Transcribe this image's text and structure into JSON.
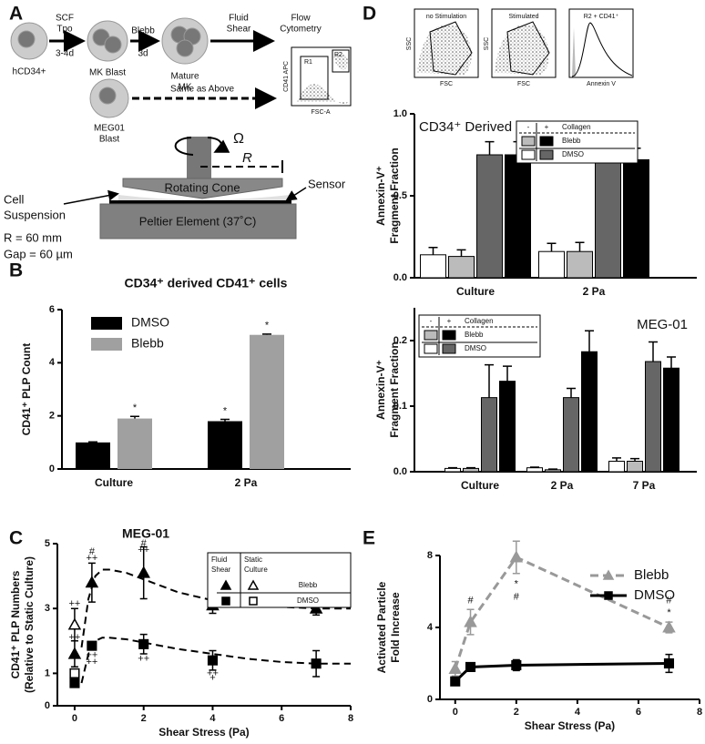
{
  "panels": [
    "A",
    "B",
    "C",
    "D",
    "E"
  ],
  "diagram": {
    "cells": [
      [
        "hCD34+"
      ],
      [
        "MK Blast"
      ],
      [
        "Mature",
        "MK"
      ],
      [
        "MEG01",
        "Blast"
      ]
    ],
    "arrows": [
      {
        "above": [
          "SCF",
          "Tpo"
        ],
        "below": [
          "3-4d"
        ]
      },
      {
        "above": [
          "Blebb"
        ],
        "below": [
          "3d"
        ]
      },
      {
        "above": [
          "Fluid",
          "Shear"
        ]
      },
      {
        "above": [
          "Same as Above"
        ]
      }
    ],
    "flow": [
      "Flow",
      "Cytometry"
    ],
    "inset": {
      "gates": [
        "R1",
        "R2"
      ],
      "xlabel": "FSC-A",
      "ylabel": "CD41 APC"
    },
    "device": {
      "omega": "Ω",
      "radius": "R",
      "cone": "Rotating Cone",
      "plate": "Peltier Element (37˚C)",
      "suspension": [
        "Cell",
        "Suspension"
      ],
      "sensor": "Sensor",
      "params": [
        "R = 60 mm",
        "Gap = 60 µm"
      ]
    }
  },
  "cytometry": [
    {
      "title": "no Stimulation",
      "xlabel": "FSC",
      "ylabel": "SSC"
    },
    {
      "title": "Stimulated",
      "xlabel": "FSC",
      "ylabel": "SSC"
    },
    {
      "title": "R2 + CD41⁺",
      "xlabel": "Annexin V"
    }
  ],
  "chart_data": [
    {
      "type": "bar",
      "title": "CD34⁺ derived CD41⁺ cells",
      "ylabel": [
        "CD41⁺ PLP Count"
      ],
      "categories": [
        "Culture",
        "2 Pa"
      ],
      "series": [
        {
          "name": "DMSO",
          "color": "#000000",
          "values": [
            1,
            1.8
          ],
          "errors": [
            0.02,
            0.07
          ],
          "annotations": [
            null,
            "*"
          ]
        },
        {
          "name": "Blebb",
          "color": "#a0a0a0",
          "values": [
            1.9,
            5.05
          ],
          "errors": [
            0.08,
            0.03
          ],
          "annotations": [
            "*",
            "*"
          ]
        }
      ],
      "ylim": [
        0,
        6
      ],
      "yticks": [
        0,
        2,
        4,
        6
      ],
      "legend": "upper left"
    },
    {
      "type": "line",
      "title": "MEG-01",
      "ylabel": [
        "CD41⁺ PLP Numbers",
        "(Relative to Static Culture)"
      ],
      "xlabel": "Shear Stress (Pa)",
      "series": [
        {
          "name": "Blebb",
          "marker": "triangle",
          "filled": true,
          "color": "#000000",
          "x": [
            0,
            0.5,
            2,
            4,
            7
          ],
          "values": [
            1.6,
            3.8,
            4.1,
            3.1,
            3.0
          ],
          "errors": [
            0.4,
            0.6,
            0.8,
            0.25,
            0.2
          ]
        },
        {
          "name": "Blebb",
          "marker": "triangle",
          "filled": false,
          "color": "#000000",
          "x": [
            0
          ],
          "values": [
            2.5
          ],
          "errors": [
            0.5
          ]
        },
        {
          "name": "DMSO",
          "marker": "square",
          "filled": true,
          "color": "#000000",
          "x": [
            0,
            0.5,
            2,
            4,
            7
          ],
          "values": [
            0.7,
            1.85,
            1.9,
            1.4,
            1.3
          ],
          "errors": [
            0.05,
            0.1,
            0.3,
            0.3,
            0.4
          ]
        },
        {
          "name": "DMSO",
          "marker": "square",
          "filled": false,
          "color": "#000000",
          "x": [
            0
          ],
          "values": [
            1.0
          ]
        }
      ],
      "fits": [
        {
          "x": [
            0.2,
            0.4,
            0.6,
            0.8,
            1,
            1.5,
            2,
            3,
            4,
            5,
            6,
            7,
            8
          ],
          "values": [
            1.8,
            3.3,
            4.0,
            4.2,
            4.2,
            4.1,
            3.9,
            3.5,
            3.25,
            3.1,
            3.05,
            3.0,
            3.0
          ]
        },
        {
          "x": [
            0.2,
            0.4,
            0.6,
            0.8,
            1,
            1.5,
            2,
            3,
            4,
            5,
            6,
            7,
            8
          ],
          "values": [
            0.7,
            1.6,
            2.0,
            2.1,
            2.1,
            2.05,
            1.95,
            1.75,
            1.6,
            1.45,
            1.35,
            1.3,
            1.3
          ]
        }
      ],
      "annotations": [
        {
          "text": "#",
          "x": 0.5,
          "y": 4.75
        },
        {
          "text": "++",
          "x": 0.5,
          "y": 4.55
        },
        {
          "text": "#",
          "x": 2,
          "y": 5.0
        },
        {
          "text": "++",
          "x": 2,
          "y": 4.8
        },
        {
          "text": "#",
          "x": 4,
          "y": 3.65
        },
        {
          "text": "++",
          "x": 4,
          "y": 3.45
        },
        {
          "text": "++",
          "x": 7,
          "y": 3.35
        },
        {
          "text": "++",
          "x": 0,
          "y": 3.15
        },
        {
          "text": "++",
          "x": 0,
          "y": 2.1
        },
        {
          "text": "++",
          "x": 0.5,
          "y": 1.55
        },
        {
          "text": "++",
          "x": 0.5,
          "y": 1.35
        },
        {
          "text": "++",
          "x": 2,
          "y": 1.45
        },
        {
          "text": "++",
          "x": 4,
          "y": 1.0
        },
        {
          "text": "+",
          "x": 4,
          "y": 0.85
        }
      ],
      "xlim": [
        -0.5,
        8
      ],
      "xticks": [
        0,
        2,
        4,
        6,
        8
      ],
      "ylim": [
        0,
        5
      ],
      "yticks": [
        0,
        1,
        3,
        5
      ],
      "legend": "upper right",
      "legend_headers": [
        [
          "Fluid",
          "Shear"
        ],
        [
          "Static",
          "Culture"
        ]
      ]
    },
    {
      "type": "bar",
      "title": "CD34⁺ Derived",
      "ylabel": [
        "Annexin-V⁺",
        "Fragment Fraction"
      ],
      "categories": [
        "Culture",
        "2 Pa"
      ],
      "series": [
        {
          "name": "DMSO",
          "collagen": "-",
          "color": "#ffffff",
          "values": [
            0.14,
            0.16
          ],
          "errors": [
            0.045,
            0.05
          ]
        },
        {
          "name": "Blebb",
          "collagen": "-",
          "color": "#bbbbbb",
          "values": [
            0.13,
            0.16
          ],
          "errors": [
            0.04,
            0.055
          ]
        },
        {
          "name": "DMSO",
          "collagen": "+",
          "color": "#666666",
          "values": [
            0.75,
            0.7
          ],
          "errors": [
            0.08,
            0.1
          ]
        },
        {
          "name": "Blebb",
          "collagen": "+",
          "color": "#000000",
          "values": [
            0.75,
            0.72
          ],
          "errors": [
            0.08,
            0.07
          ]
        }
      ],
      "ylim": [
        0,
        1
      ],
      "yticks": [
        {
          "value": 0,
          "label": "0.0"
        },
        {
          "value": 0.5,
          "label": "0.5"
        },
        {
          "value": 1,
          "label": "1.0"
        }
      ],
      "legend": "upper right",
      "legend_title": "Collagen"
    },
    {
      "type": "bar",
      "title": "MEG-01",
      "ylabel": [
        "Annexin-V⁺",
        "Fragment Fraction"
      ],
      "categories": [
        "Culture",
        "2 Pa",
        "7 Pa"
      ],
      "series": [
        {
          "name": "DMSO",
          "collagen": "-",
          "color": "#ffffff",
          "values": [
            0.005,
            0.006,
            0.016
          ],
          "errors": [
            0.001,
            0.001,
            0.005
          ]
        },
        {
          "name": "Blebb",
          "collagen": "-",
          "color": "#bbbbbb",
          "values": [
            0.005,
            0.003,
            0.016
          ],
          "errors": [
            0.001,
            0.001,
            0.004
          ]
        },
        {
          "name": "DMSO",
          "collagen": "+",
          "color": "#666666",
          "values": [
            0.113,
            0.113,
            0.168
          ],
          "errors": [
            0.05,
            0.014,
            0.03
          ]
        },
        {
          "name": "Blebb",
          "collagen": "+",
          "color": "#000000",
          "values": [
            0.138,
            0.183,
            0.158
          ],
          "errors": [
            0.023,
            0.032,
            0.017
          ]
        }
      ],
      "ylim": [
        0,
        0.25
      ],
      "yticks": [
        {
          "value": 0,
          "label": "0.0"
        },
        {
          "value": 0.1,
          "label": "0.1"
        },
        {
          "value": 0.2,
          "label": "0.2"
        }
      ],
      "legend": "upper left",
      "legend_title": "Collagen"
    },
    {
      "type": "line",
      "ylabel": [
        "Activated Particle",
        "Fold Increase"
      ],
      "xlabel": "Shear Stress (Pa)",
      "series": [
        {
          "name": "Blebb",
          "marker": "triangle",
          "filled": true,
          "line": "dashed",
          "color": "#999999",
          "x": [
            0,
            0.5,
            2,
            7
          ],
          "values": [
            1.7,
            4.3,
            7.9,
            4.0
          ],
          "errors": [
            0.4,
            0.7,
            0.9,
            0.3
          ]
        },
        {
          "name": "DMSO",
          "marker": "square",
          "filled": true,
          "line": "solid",
          "color": "#000000",
          "x": [
            0,
            0.5,
            2,
            7
          ],
          "values": [
            1.0,
            1.8,
            1.9,
            2.0
          ],
          "errors": [
            0.1,
            0.15,
            0.3,
            0.5
          ]
        }
      ],
      "annotations": [
        {
          "text": "#",
          "x": 0.5,
          "y": 5.5
        },
        {
          "text": "*",
          "x": 2,
          "y": 6.4
        },
        {
          "text": "#",
          "x": 2,
          "y": 5.7
        },
        {
          "text": "#",
          "x": 7,
          "y": 5.5
        },
        {
          "text": "*",
          "x": 7,
          "y": 4.8
        }
      ],
      "xlim": [
        -0.5,
        8
      ],
      "xticks": [
        0,
        2,
        4,
        6,
        8
      ],
      "ylim": [
        0,
        8
      ],
      "yticks": [
        0,
        4,
        8
      ],
      "legend": "upper right"
    }
  ]
}
